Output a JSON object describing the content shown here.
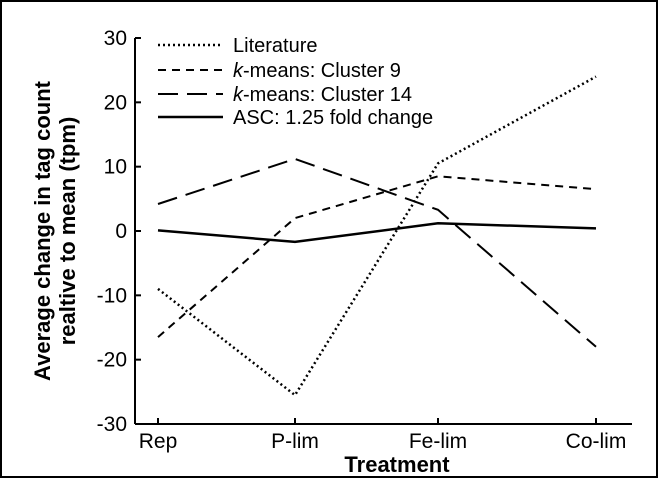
{
  "chart_data": {
    "type": "line",
    "title": "",
    "xlabel": "Treatment",
    "ylabel_line1": "Average change in tag count",
    "ylabel_line2": "realtive to mean (tpm)",
    "categories": [
      "Rep",
      "P-lim",
      "Fe-lim",
      "Co-lim"
    ],
    "ylim": [
      -30,
      30
    ],
    "yticks": [
      "30",
      "20",
      "10",
      "0",
      "-10",
      "-20",
      "-30"
    ],
    "ytick_values": [
      30,
      20,
      10,
      0,
      -10,
      -20,
      -30
    ],
    "grid": false,
    "legend_position": "top-left",
    "series": [
      {
        "name": "Literature",
        "italic_prefix": "",
        "rest": "Literature",
        "style": "dotted",
        "values": [
          -9,
          -25.5,
          10.5,
          24
        ]
      },
      {
        "name": "k-means: Cluster 9",
        "italic_prefix": "k",
        "rest": "-means: Cluster 9",
        "style": "short-dash",
        "values": [
          -16.5,
          2,
          8.5,
          6.5
        ]
      },
      {
        "name": "k-means: Cluster 14",
        "italic_prefix": "k",
        "rest": "-means: Cluster 14",
        "style": "long-dash",
        "values": [
          4.2,
          11.2,
          3.3,
          -18
        ]
      },
      {
        "name": "ASC: 1.25 fold change",
        "italic_prefix": "",
        "rest": "ASC: 1.25 fold change",
        "style": "solid",
        "values": [
          0.1,
          -1.7,
          1.2,
          0.4
        ]
      }
    ]
  }
}
